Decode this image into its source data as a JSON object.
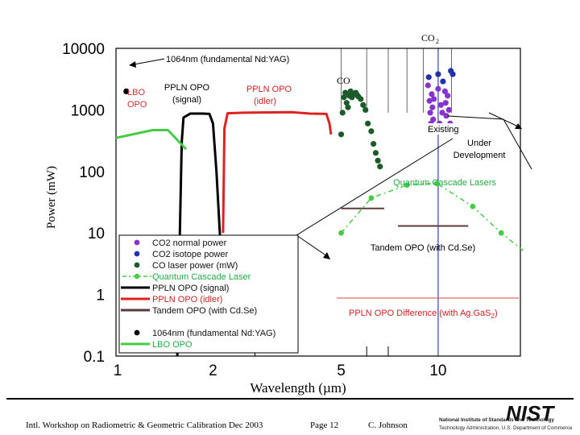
{
  "chart_data": {
    "type": "scatter",
    "title": "",
    "xlabel": "Wavelength (µm)",
    "ylabel": "Power (mW)",
    "x_scale": "log",
    "y_scale": "log",
    "xlim": [
      1.0,
      18
    ],
    "ylim": [
      0.1,
      10000
    ],
    "x_ticks": [
      {
        "value": 1,
        "label": "1"
      },
      {
        "value": 2,
        "label": "2"
      },
      {
        "value": 5,
        "label": "5"
      },
      {
        "value": 10,
        "label": "10"
      }
    ],
    "y_ticks": [
      {
        "value": 10000,
        "label": "10000"
      },
      {
        "value": 1000,
        "label": "1000"
      },
      {
        "value": 100,
        "label": "100"
      },
      {
        "value": 10,
        "label": "10"
      },
      {
        "value": 1,
        "label": "1"
      },
      {
        "value": 0.1,
        "label": "0.1"
      }
    ],
    "series": [
      {
        "name": "CO2 normal power",
        "kind": "points",
        "color": "#8833cc",
        "points": [
          [
            9.3,
            2500
          ],
          [
            9.4,
            1400
          ],
          [
            9.45,
            900
          ],
          [
            9.5,
            600
          ],
          [
            9.55,
            1800
          ],
          [
            9.6,
            1100
          ],
          [
            9.65,
            700
          ],
          [
            9.7,
            1500
          ],
          [
            10.0,
            2200
          ],
          [
            10.1,
            600
          ],
          [
            10.2,
            1200
          ],
          [
            10.3,
            900
          ],
          [
            10.4,
            500
          ],
          [
            10.5,
            2000
          ],
          [
            10.55,
            1300
          ],
          [
            10.6,
            800
          ],
          [
            10.7,
            1700
          ],
          [
            10.8,
            1000
          ],
          [
            10.9,
            600
          ]
        ]
      },
      {
        "name": "CO2 isotope power",
        "kind": "points",
        "color": "#2233aa",
        "points": [
          [
            9.35,
            3400
          ],
          [
            10.0,
            3800
          ],
          [
            10.35,
            2900
          ],
          [
            10.95,
            4300
          ],
          [
            11.1,
            3800
          ]
        ]
      },
      {
        "name": "CO laser power (mW)",
        "kind": "points",
        "color": "#1d5c2a",
        "points": [
          [
            5.0,
            400
          ],
          [
            5.05,
            900
          ],
          [
            5.1,
            1600
          ],
          [
            5.15,
            1900
          ],
          [
            5.2,
            1300
          ],
          [
            5.25,
            1100
          ],
          [
            5.3,
            1700
          ],
          [
            5.35,
            2000
          ],
          [
            5.4,
            1600
          ],
          [
            5.5,
            1800
          ],
          [
            5.55,
            1900
          ],
          [
            5.6,
            1750
          ],
          [
            5.65,
            1650
          ],
          [
            5.75,
            1500
          ],
          [
            5.85,
            1200
          ],
          [
            5.95,
            1000
          ],
          [
            6.05,
            600
          ],
          [
            6.2,
            450
          ],
          [
            6.3,
            280
          ],
          [
            6.4,
            200
          ],
          [
            6.5,
            150
          ],
          [
            6.6,
            120
          ]
        ]
      },
      {
        "name": "Quantum Cascade Laser",
        "kind": "dash-line-points",
        "color": "#44cc44",
        "points": [
          [
            5.0,
            10
          ],
          [
            6.2,
            37
          ],
          [
            8.0,
            60
          ],
          [
            9.9,
            64
          ],
          [
            12.8,
            27
          ],
          [
            15.7,
            10
          ],
          [
            18.5,
            5
          ]
        ]
      },
      {
        "name": "PPLN OPO (signal)",
        "kind": "line",
        "color": "#000000",
        "points": [
          [
            1.55,
            0.1
          ],
          [
            1.58,
            12
          ],
          [
            1.6,
            300
          ],
          [
            1.62,
            750
          ],
          [
            1.7,
            870
          ],
          [
            1.85,
            870
          ],
          [
            1.95,
            860
          ],
          [
            2.0,
            600
          ],
          [
            2.05,
            100
          ],
          [
            2.1,
            10
          ],
          [
            2.15,
            1
          ]
        ]
      },
      {
        "name": "PPLN OPO (idler)",
        "kind": "line",
        "color": "#dd2222",
        "points": [
          [
            2.15,
            10
          ],
          [
            2.17,
            500
          ],
          [
            2.22,
            880
          ],
          [
            2.5,
            900
          ],
          [
            3.5,
            920
          ],
          [
            4.0,
            870
          ],
          [
            4.5,
            860
          ],
          [
            4.6,
            600
          ],
          [
            4.65,
            400
          ]
        ]
      },
      {
        "name": "Tandem OPO (with CdSe)",
        "kind": "segments",
        "color": "#5a3a3a",
        "segments": [
          [
            [
              5.0,
              25
            ],
            [
              6.8,
              25
            ]
          ],
          [
            [
              7.5,
              13
            ],
            [
              10.3,
              13
            ]
          ],
          [
            [
              10.3,
              13
            ],
            [
              12.4,
              13
            ]
          ]
        ]
      },
      {
        "name": "1064nm (fundamental Nd:YAG)",
        "kind": "points",
        "color": "#000000",
        "points": [
          [
            1.064,
            2000
          ]
        ]
      },
      {
        "name": "LBO OPO",
        "kind": "line",
        "color": "#44cc44",
        "points": [
          [
            1.0,
            350
          ],
          [
            1.3,
            470
          ],
          [
            1.45,
            470
          ],
          [
            1.65,
            230
          ]
        ]
      }
    ],
    "legend": {
      "position": "lower-left",
      "entries": [
        {
          "name": "CO2 normal power",
          "marker": "dot",
          "color": "#8833cc"
        },
        {
          "name": "CO2 isotope power",
          "marker": "dot",
          "color": "#2233aa"
        },
        {
          "name": "CO laser power (mW)",
          "marker": "dot",
          "color": "#1d5c2a"
        },
        {
          "name": "Quantum Cascade Laser",
          "marker": "dash-dot",
          "color": "#44cc44"
        },
        {
          "name": "PPLN OPO (signal)",
          "marker": "line",
          "color": "#000000"
        },
        {
          "name": "PPLN OPO (idler)",
          "marker": "line",
          "color": "#dd2222"
        },
        {
          "name": "Tandem OPO (with Cd.Se)",
          "marker": "line",
          "color": "#5a3a3a"
        },
        {
          "name": "1064nm (fundamental Nd:YAG)",
          "marker": "dot",
          "color": "#000000"
        },
        {
          "name": "LBO OPO",
          "marker": "line",
          "color": "#44cc44"
        }
      ]
    },
    "annotations": {
      "co2_label": "CO",
      "co2_subscript": "2",
      "co_label": "CO",
      "nd_yag": "1064nm (fundamental Nd:YAG)",
      "lbo_line1": "LBO",
      "lbo_line2": "OPO",
      "ppln_signal_line1": "PPLN OPO",
      "ppln_signal_line2": "(signal)",
      "ppln_idler_line1": "PPLN OPO",
      "ppln_idler_line2": "(idler)",
      "existing": "Existing",
      "under_dev_line1": "Under",
      "under_dev_line2": "Development",
      "qcl": "Quantum Cascade Lasers",
      "tandem": "Tandem OPO (with Cd.Se)",
      "ppln_diff": "PPLN OPO Difference (with Ag.GaS",
      "ppln_diff_sub": "2",
      "ppln_diff_end": ")"
    }
  },
  "footer": {
    "workshop": "Intl. Workshop on Radiometric & Geometric Calibration  Dec 2003",
    "page": "Page 12",
    "author": "C. Johnson",
    "org_line1": "National Institute of Standards and Technology",
    "org_line2": "Technology Administration, U.S. Department of Commerce",
    "logo_text": "NIST"
  }
}
